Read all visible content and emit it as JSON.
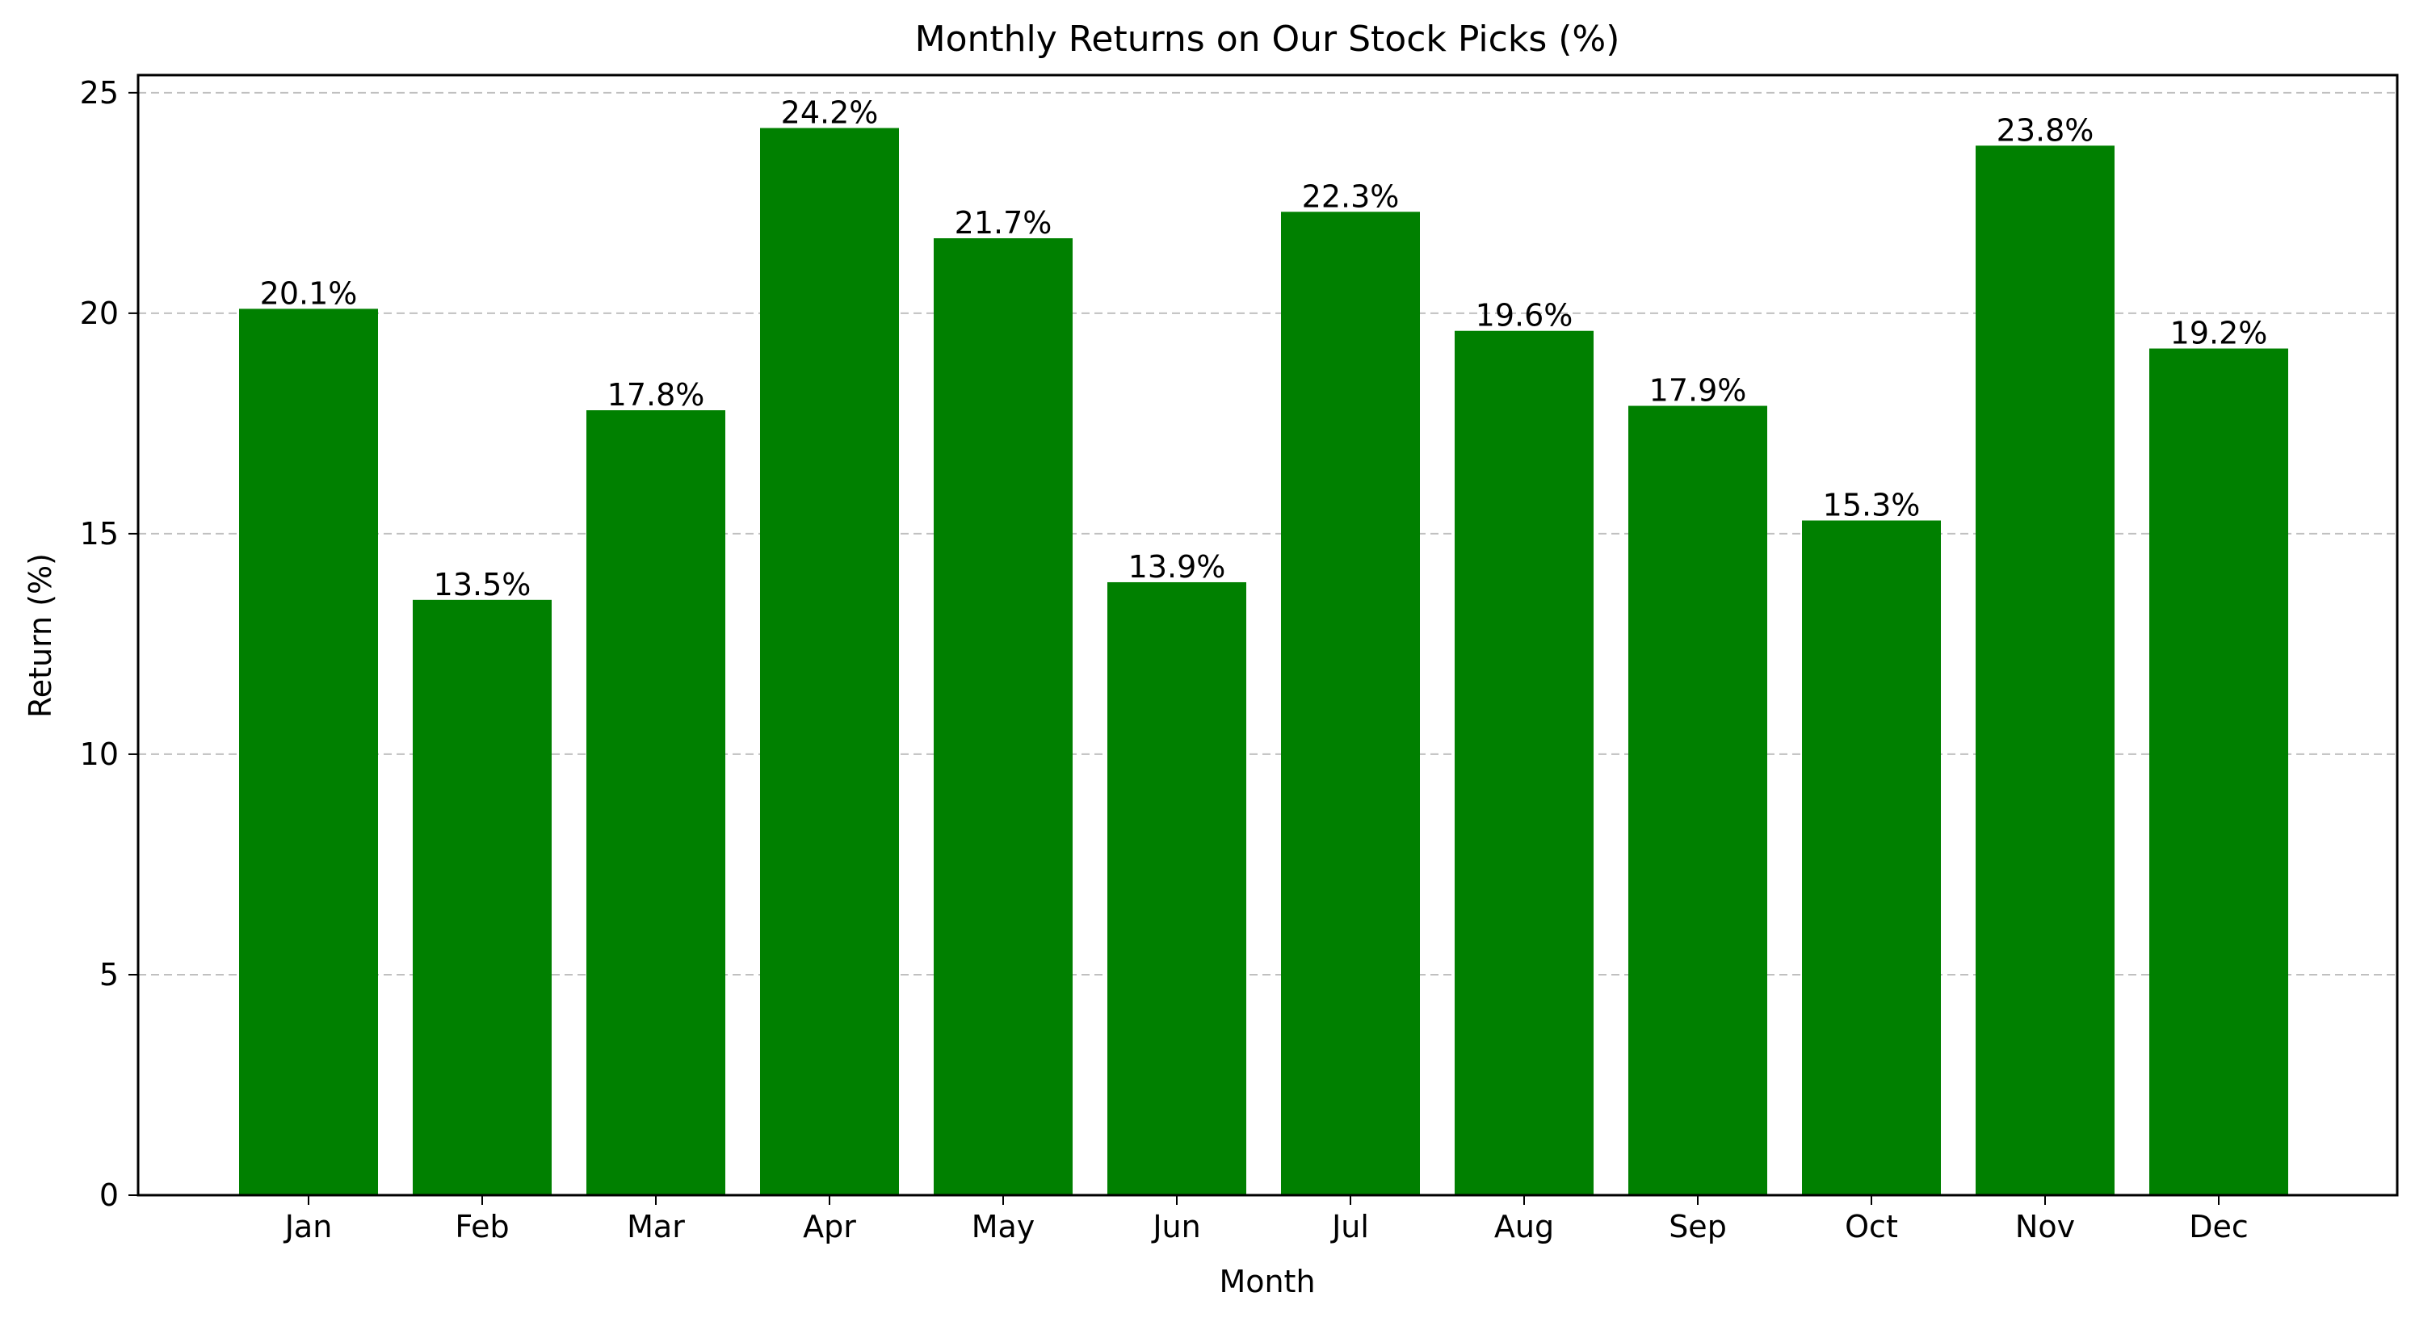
{
  "chart_data": {
    "type": "bar",
    "title": "Monthly Returns on Our Stock Picks (%)",
    "xlabel": "Month",
    "ylabel": "Return (%)",
    "categories": [
      "Jan",
      "Feb",
      "Mar",
      "Apr",
      "May",
      "Jun",
      "Jul",
      "Aug",
      "Sep",
      "Oct",
      "Nov",
      "Dec"
    ],
    "values": [
      20.1,
      13.5,
      17.8,
      24.2,
      21.7,
      13.9,
      22.3,
      19.6,
      17.9,
      15.3,
      23.8,
      19.2
    ],
    "value_labels": [
      "20.1%",
      "13.5%",
      "17.8%",
      "24.2%",
      "21.7%",
      "13.9%",
      "22.3%",
      "19.6%",
      "17.9%",
      "15.3%",
      "23.8%",
      "19.2%"
    ],
    "ylim": [
      0,
      25.4
    ],
    "yticks": [
      0,
      5,
      10,
      15,
      20,
      25
    ],
    "ytick_labels": [
      "0",
      "5",
      "10",
      "15",
      "20",
      "25"
    ],
    "grid": "y-dashed",
    "bar_color": "#008000",
    "grid_color": "#c0c0c0"
  }
}
